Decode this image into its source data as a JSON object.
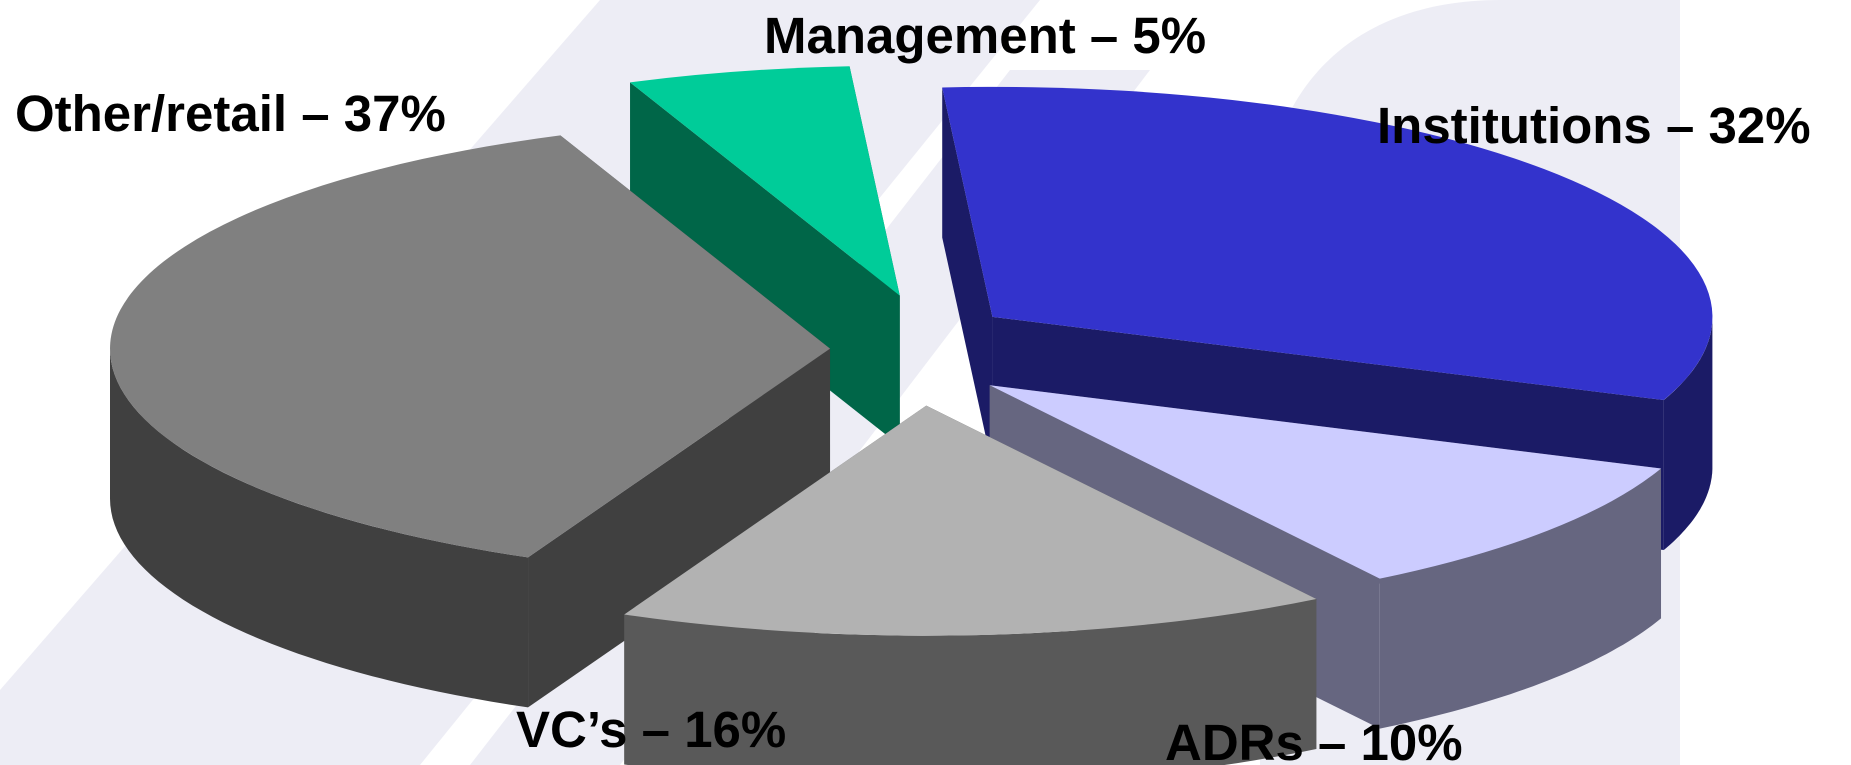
{
  "chart_data": {
    "type": "pie",
    "style": "3d-exploded",
    "title": "",
    "slices": [
      {
        "label": "Management – 5%",
        "value": 5,
        "top_color": "#00cc99",
        "side_color": "#006648"
      },
      {
        "label": "Institutions – 32%",
        "value": 32,
        "top_color": "#3333cc",
        "side_color": "#1b1b66"
      },
      {
        "label": "ADRs – 10%",
        "value": 10,
        "top_color": "#ccccff",
        "side_color": "#666680"
      },
      {
        "label": "VC’s – 16%",
        "value": 16,
        "top_color": "#b2b2b2",
        "side_color": "#595959"
      },
      {
        "label": "Other/retail – 37%",
        "value": 37,
        "top_color": "#808080",
        "side_color": "#404040"
      }
    ]
  },
  "background": {
    "watermark_color": "#ededf5"
  }
}
